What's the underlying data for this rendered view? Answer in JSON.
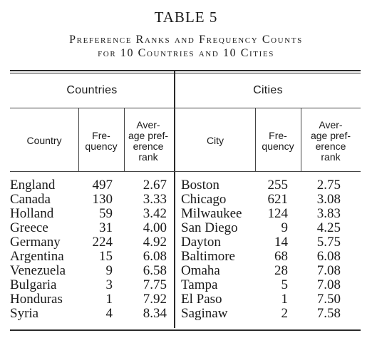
{
  "table_label": "TABLE 5",
  "caption_line1": "Preference Ranks and Frequency Counts",
  "caption_line2": "for 10 Countries and 10 Cities",
  "groups": {
    "countries": "Countries",
    "cities": "Cities"
  },
  "columns": {
    "country": "Country",
    "city": "City",
    "frequency": [
      "Fre-",
      "quency"
    ],
    "average_rank": [
      "Aver-",
      "age pref-",
      "erence",
      "rank"
    ]
  },
  "rows": [
    {
      "country": "England",
      "country_freq": "497",
      "country_rank": "2.67",
      "city": "Boston",
      "city_freq": "255",
      "city_rank": "2.75"
    },
    {
      "country": "Canada",
      "country_freq": "130",
      "country_rank": "3.33",
      "city": "Chicago",
      "city_freq": "621",
      "city_rank": "3.08"
    },
    {
      "country": "Holland",
      "country_freq": "59",
      "country_rank": "3.42",
      "city": "Milwaukee",
      "city_freq": "124",
      "city_rank": "3.83"
    },
    {
      "country": "Greece",
      "country_freq": "31",
      "country_rank": "4.00",
      "city": "San Diego",
      "city_freq": "9",
      "city_rank": "4.25"
    },
    {
      "country": "Germany",
      "country_freq": "224",
      "country_rank": "4.92",
      "city": "Dayton",
      "city_freq": "14",
      "city_rank": "5.75"
    },
    {
      "country": "Argentina",
      "country_freq": "15",
      "country_rank": "6.08",
      "city": "Baltimore",
      "city_freq": "68",
      "city_rank": "6.08"
    },
    {
      "country": "Venezuela",
      "country_freq": "9",
      "country_rank": "6.58",
      "city": "Omaha",
      "city_freq": "28",
      "city_rank": "7.08"
    },
    {
      "country": "Bulgaria",
      "country_freq": "3",
      "country_rank": "7.75",
      "city": "Tampa",
      "city_freq": "5",
      "city_rank": "7.08"
    },
    {
      "country": "Honduras",
      "country_freq": "1",
      "country_rank": "7.92",
      "city": "El Paso",
      "city_freq": "1",
      "city_rank": "7.50"
    },
    {
      "country": "Syria",
      "country_freq": "4",
      "country_rank": "8.34",
      "city": "Saginaw",
      "city_freq": "2",
      "city_rank": "7.58"
    }
  ]
}
